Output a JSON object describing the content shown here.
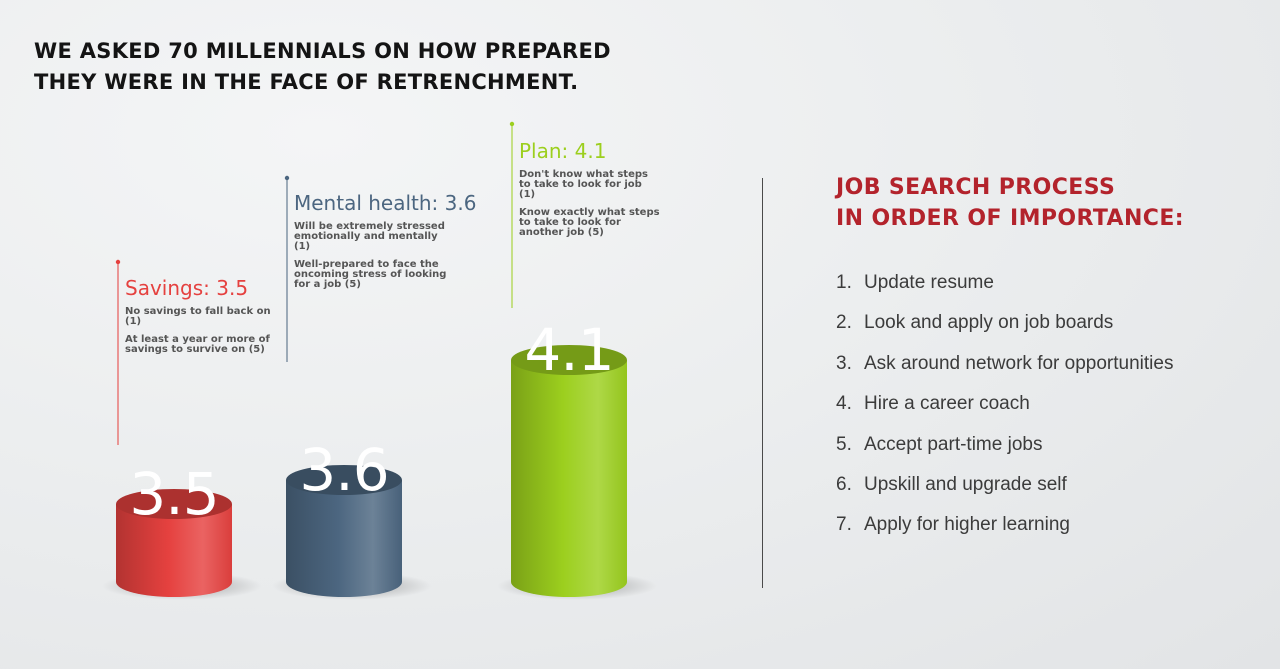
{
  "title_lines": [
    "We asked 70 millennials on how prepared",
    "they were in the face of retrenchment."
  ],
  "chart_data": {
    "type": "bar",
    "categories": [
      "Savings",
      "Mental health",
      "Plan"
    ],
    "values": [
      3.5,
      3.6,
      4.1
    ],
    "series": [
      {
        "name": "Savings",
        "value": 3.5,
        "color": "#e5413f",
        "heading": "Savings: 3.5",
        "value_label": "3.5",
        "notes": [
          "No savings to fall back on (1)",
          "At least a year or more of savings to survive on (5)"
        ]
      },
      {
        "name": "Mental health",
        "value": 3.6,
        "color": "#4c6680",
        "heading": "Mental health: 3.6",
        "value_label": "3.6",
        "notes": [
          "Will be extremely stressed emotionally and mentally (1)",
          "Well-prepared to face the oncoming stress of looking for a job (5)"
        ]
      },
      {
        "name": "Plan",
        "value": 4.1,
        "color": "#9ccf1e",
        "heading": "Plan: 4.1",
        "value_label": "4.1",
        "notes": [
          "Don't know what steps to take to look for job (1)",
          "Know exactly what steps to take to look for another job (5)"
        ]
      }
    ],
    "scale": {
      "min": 1,
      "max": 5
    }
  },
  "process": {
    "title_lines": [
      "Job search process",
      "in order of importance:"
    ],
    "steps": [
      {
        "num": "1.",
        "label": "Update resume"
      },
      {
        "num": "2.",
        "label": "Look and apply on job boards"
      },
      {
        "num": "3.",
        "label": "Ask around network for opportunities"
      },
      {
        "num": "4.",
        "label": "Hire a career coach"
      },
      {
        "num": "5.",
        "label": "Accept part-time jobs"
      },
      {
        "num": "6.",
        "label": "Upskill and upgrade self"
      },
      {
        "num": "7.",
        "label": "Apply for higher learning"
      }
    ]
  }
}
